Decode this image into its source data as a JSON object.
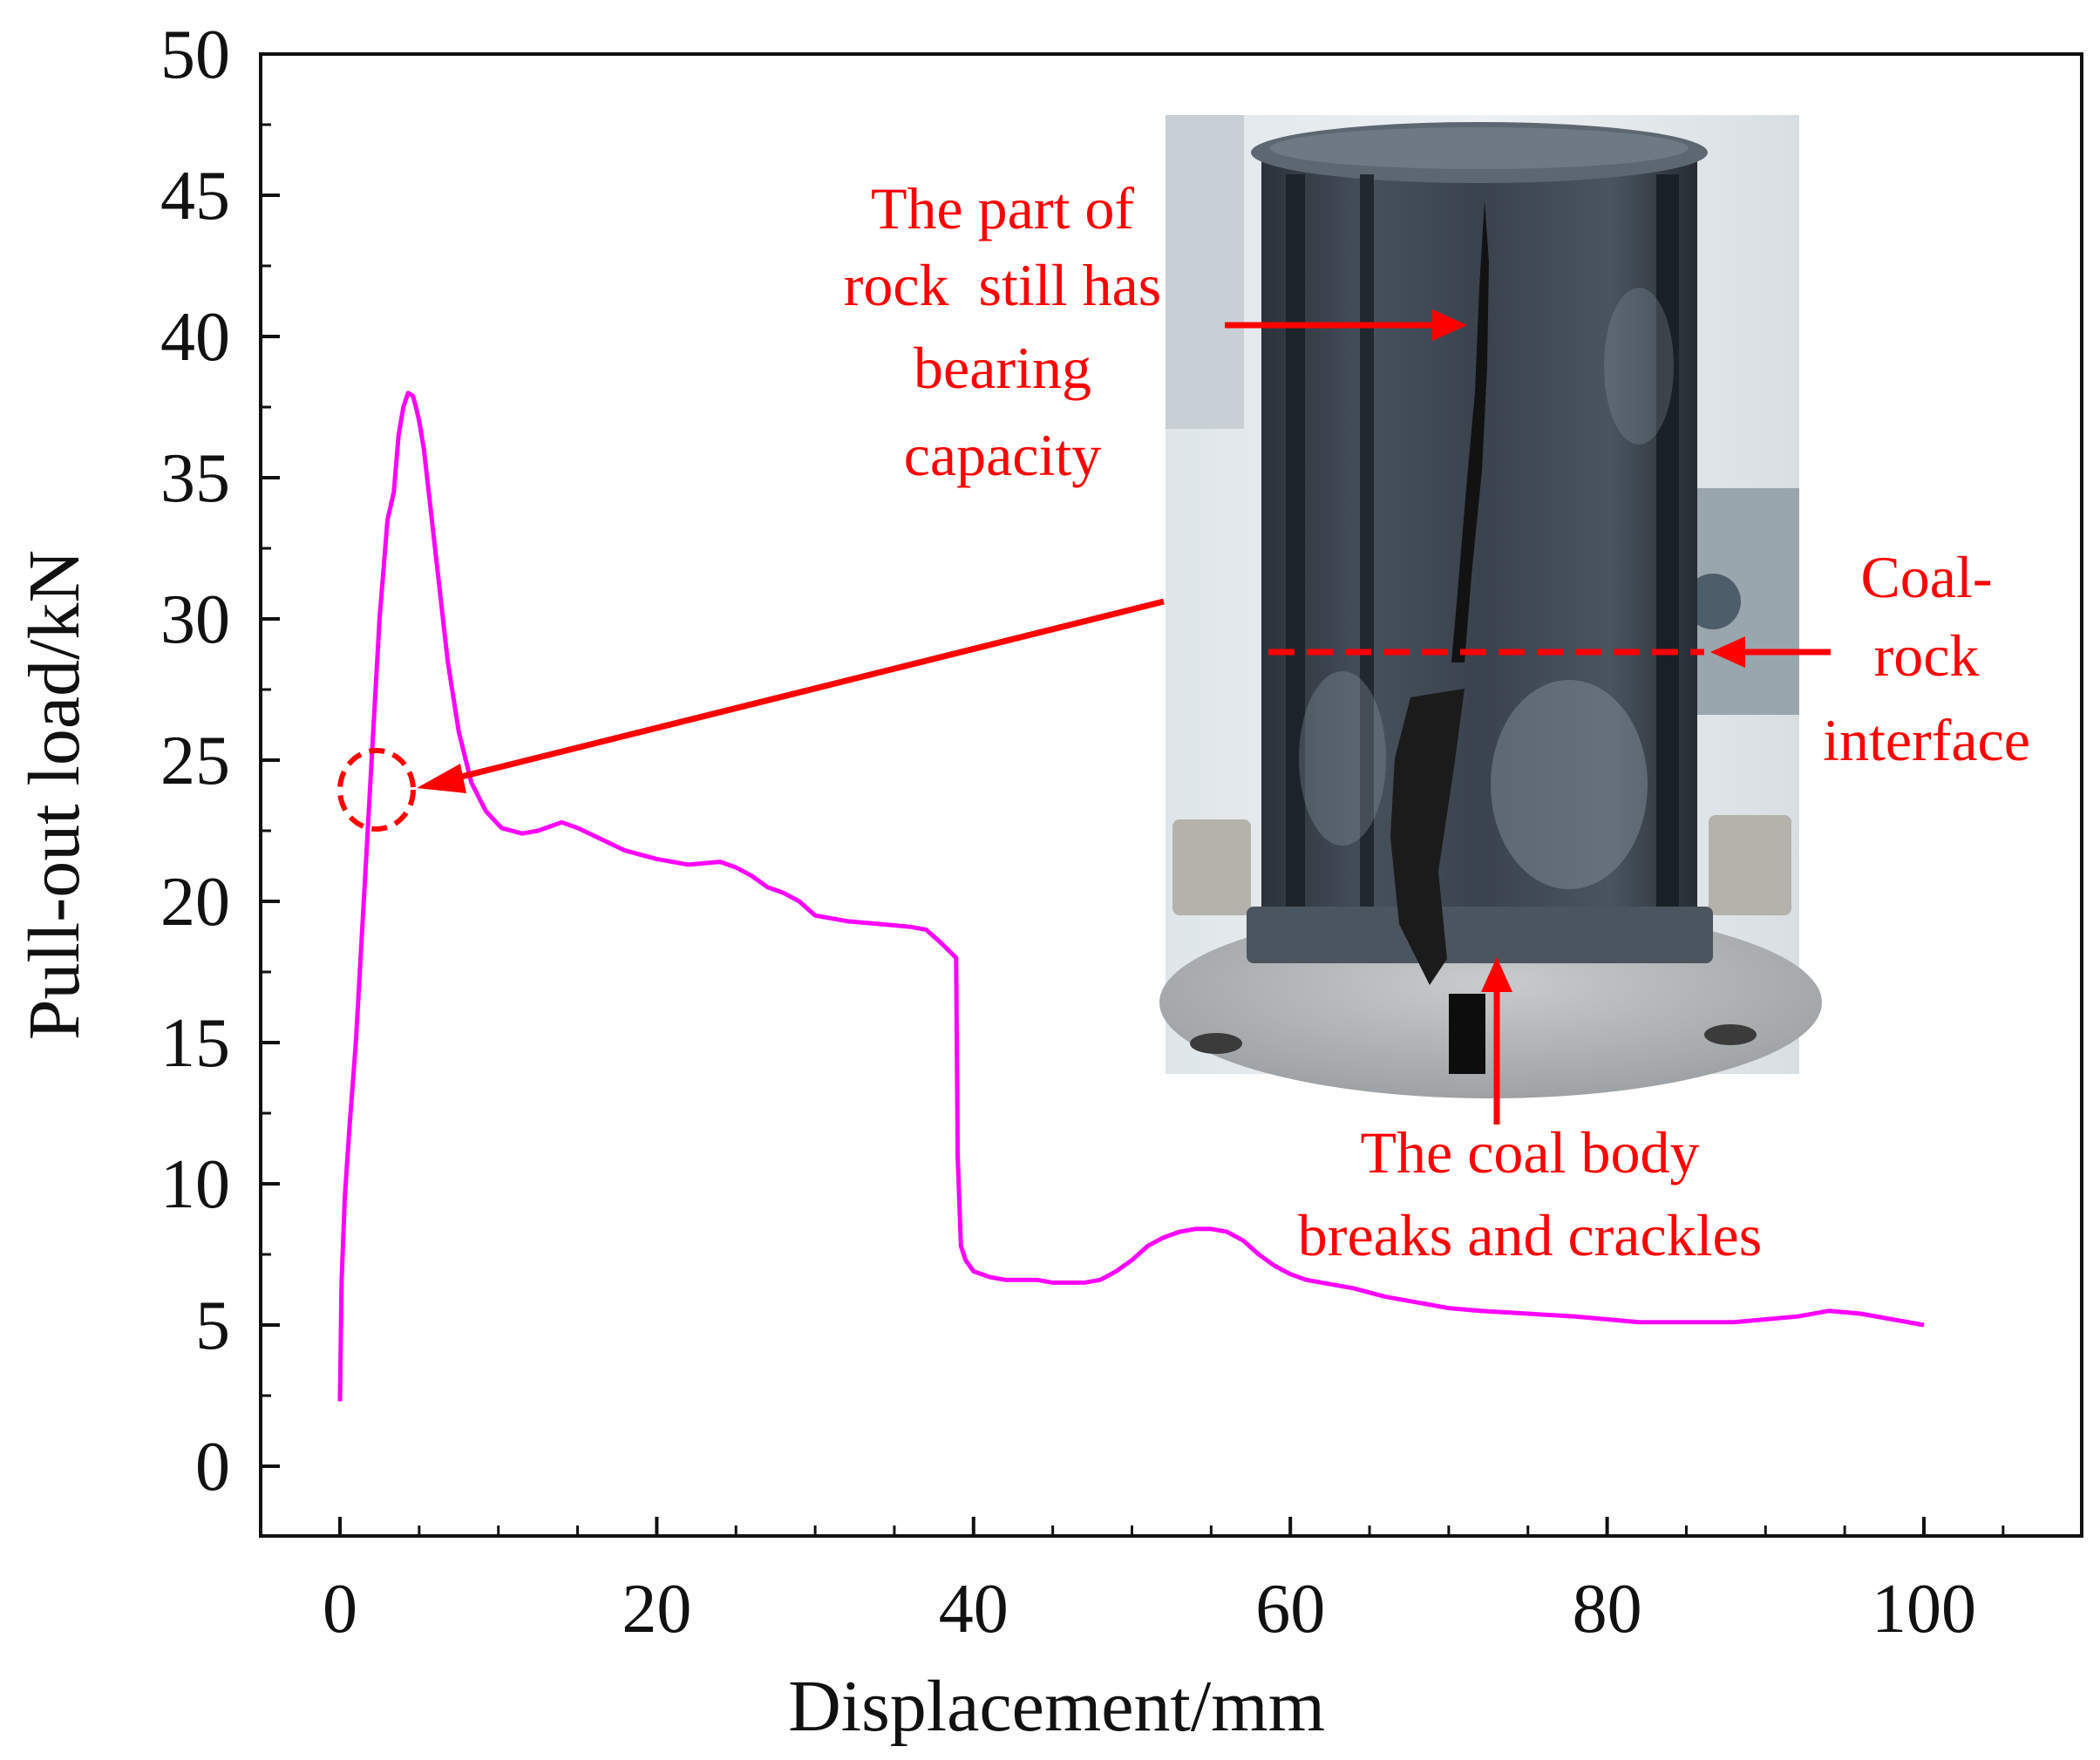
{
  "chart_data": {
    "type": "line",
    "title": "",
    "xlabel": "Displacement/mm",
    "ylabel": "Pull-out load/kN",
    "xlim": [
      -5,
      110
    ],
    "ylim": [
      0,
      50
    ],
    "xticks": [
      0,
      20,
      40,
      60,
      80,
      100
    ],
    "yticks": [
      0,
      5,
      10,
      15,
      20,
      25,
      30,
      35,
      40,
      45,
      50
    ],
    "grid": false,
    "legend": "none",
    "series": [
      {
        "color": "#ff00ff",
        "x": [
          0.0,
          0.1,
          0.3,
          0.6,
          1.0,
          1.5,
          2.0,
          2.5,
          3.0,
          3.4,
          3.7,
          4.0,
          4.3,
          4.6,
          4.8,
          5.0,
          5.3,
          5.7,
          6.2,
          6.8,
          7.5,
          8.3,
          9.2,
          10.2,
          11.5,
          12.5,
          14.0,
          15.0,
          16.5,
          18.0,
          20.0,
          22.0,
          24.0,
          25.0,
          26.0,
          27.0,
          28.0,
          29.0,
          30.0,
          32.0,
          34.0,
          36.0,
          37.0,
          38.0,
          38.9,
          39.0,
          39.2,
          39.5,
          40.0,
          41.0,
          42.0,
          43.0,
          44.0,
          45.0,
          46.0,
          47.0,
          48.0,
          49.0,
          50.0,
          51.0,
          52.0,
          53.0,
          54.0,
          55.0,
          56.0,
          57.0,
          58.0,
          59.0,
          60.0,
          61.0,
          62.0,
          64.0,
          66.0,
          68.0,
          70.0,
          72.0,
          75.0,
          78.0,
          80.0,
          82.0,
          85.0,
          88.0,
          90.0,
          92.0,
          94.0,
          96.0,
          98.0,
          100.0
        ],
        "y": [
          2.3,
          6.5,
          9.5,
          12.0,
          15.0,
          20.0,
          25.0,
          30.0,
          33.5,
          34.5,
          36.5,
          37.5,
          38.0,
          37.9,
          37.5,
          37.0,
          36.0,
          34.0,
          31.5,
          28.5,
          26.0,
          24.2,
          23.2,
          22.6,
          22.4,
          22.5,
          22.8,
          22.6,
          22.2,
          21.8,
          21.5,
          21.3,
          21.4,
          21.2,
          20.9,
          20.5,
          20.3,
          20.0,
          19.5,
          19.3,
          19.2,
          19.1,
          19.0,
          18.5,
          18.0,
          11.0,
          7.8,
          7.3,
          6.9,
          6.7,
          6.6,
          6.6,
          6.6,
          6.5,
          6.5,
          6.5,
          6.6,
          6.9,
          7.3,
          7.8,
          8.1,
          8.3,
          8.4,
          8.4,
          8.3,
          8.0,
          7.5,
          7.1,
          6.8,
          6.6,
          6.5,
          6.3,
          6.0,
          5.8,
          5.6,
          5.5,
          5.4,
          5.3,
          5.2,
          5.1,
          5.1,
          5.1,
          5.2,
          5.3,
          5.5,
          5.4,
          5.2,
          5.0
        ]
      }
    ],
    "annotations": {
      "rock_note": [
        "The part of",
        "rock  still has",
        "bearing",
        "capacity"
      ],
      "interface_note": [
        "Coal-",
        "rock",
        "interface"
      ],
      "coal_note": [
        "The coal body",
        "breaks and crackles"
      ]
    }
  },
  "colors": {
    "series": "#ff00ff",
    "annotation": "#ff0000",
    "axis": "#111111"
  }
}
